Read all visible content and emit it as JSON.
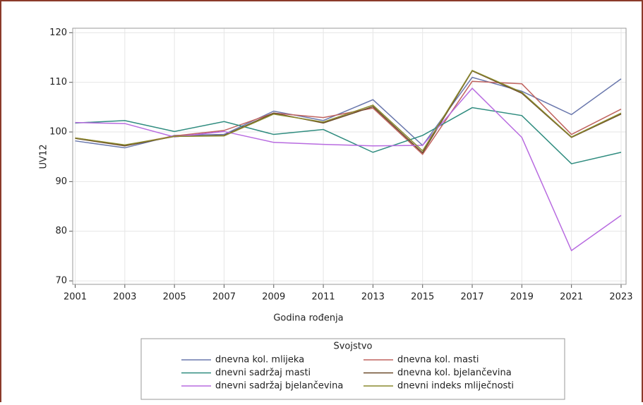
{
  "chart_data": {
    "type": "line",
    "x": [
      2001,
      2003,
      2005,
      2007,
      2009,
      2011,
      2013,
      2015,
      2017,
      2019,
      2021,
      2023
    ],
    "xlabel": "Godina rođenja",
    "ylabel": "UV12",
    "xlim": [
      2000.9,
      2023.2
    ],
    "xticks": [
      2001,
      2003,
      2005,
      2007,
      2009,
      2011,
      2013,
      2015,
      2017,
      2019,
      2021,
      2023
    ],
    "ylim": [
      69.3,
      120.9
    ],
    "yticks": [
      70,
      80,
      90,
      100,
      110,
      120
    ],
    "grid": true,
    "legend_title": "Svojstvo",
    "legend_position": "bottom",
    "series": [
      {
        "name": "dnevna kol. mlijeka",
        "color": "#6a78ad",
        "values": [
          98.2,
          96.8,
          99.3,
          99.5,
          104.2,
          102.3,
          106.5,
          97.3,
          111.0,
          108.2,
          103.5,
          110.7
        ]
      },
      {
        "name": "dnevna kol. masti",
        "color": "#c0635f",
        "values": [
          98.8,
          97.3,
          99.2,
          100.3,
          103.8,
          102.9,
          104.8,
          95.5,
          110.2,
          109.7,
          99.5,
          104.6
        ]
      },
      {
        "name": "dnevni sadržaj masti",
        "color": "#2f8c7f",
        "values": [
          101.8,
          102.3,
          100.1,
          102.1,
          99.5,
          100.5,
          95.9,
          99.3,
          104.9,
          103.3,
          93.6,
          95.9
        ]
      },
      {
        "name": "dnevna kol. bjelančevina",
        "color": "#6b4a2a",
        "values": [
          98.7,
          97.2,
          99.1,
          99.3,
          103.8,
          101.8,
          105.1,
          95.8,
          112.3,
          107.8,
          98.9,
          103.6
        ]
      },
      {
        "name": "dnevni sadržaj bjelančevina",
        "color": "#b86be0",
        "values": [
          101.9,
          101.7,
          99.0,
          100.1,
          97.9,
          97.5,
          97.2,
          97.3,
          108.8,
          98.9,
          76.1,
          83.2
        ]
      },
      {
        "name": "dnevni indeks mliječnosti",
        "color": "#8a8a2e",
        "values": [
          98.8,
          97.4,
          99.1,
          99.2,
          103.6,
          102.0,
          105.4,
          96.2,
          112.4,
          108.0,
          99.0,
          103.8
        ]
      }
    ]
  }
}
